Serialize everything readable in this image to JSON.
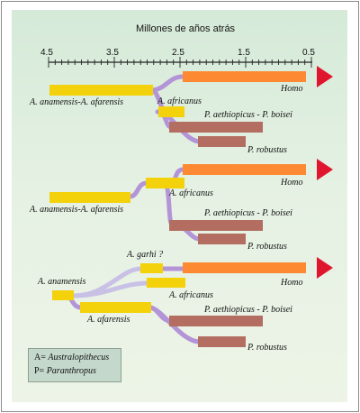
{
  "axis": {
    "title": "Millones de años atrás",
    "ticks": [
      "4.5",
      "3.5",
      "2.5",
      "1.5",
      "0.5"
    ]
  },
  "colors": {
    "australopithecus": "#f3d10b",
    "homo": "#fd8a32",
    "paranthropus": "#b36e61",
    "arrow": "#e0162f",
    "link": "#b394d6",
    "link_light": "#c9c0e6",
    "background_top": "#d5ead8",
    "background_bottom": "#edf4e7"
  },
  "diagrams": [
    {
      "labels": {
        "anamensis_afarensis": "A. anamensis-A. afarensis",
        "africanus": "A. africanus",
        "homo": "Homo",
        "boisei": "P. aethiopicus - P. boisei",
        "robustus": "P. robustus"
      }
    },
    {
      "labels": {
        "anamensis_afarensis": "A. anamensis-A. afarensis",
        "africanus": "A. africanus",
        "homo": "Homo",
        "boisei": "P. aethiopicus - P. boisei",
        "robustus": "P. robustus"
      }
    },
    {
      "labels": {
        "garhi": "A. garhi ?",
        "anamensis": "A. anamensis",
        "africanus": "A. africanus",
        "homo": "Homo",
        "afarensis": "A. afarensis",
        "boisei": "P. aethiopicus - P. boisei",
        "robustus": "P. robustus"
      }
    }
  ],
  "legend": {
    "a_prefix": "A= ",
    "a_name": "Australopithecus",
    "p_prefix": "P= ",
    "p_name": "Paranthropus"
  }
}
